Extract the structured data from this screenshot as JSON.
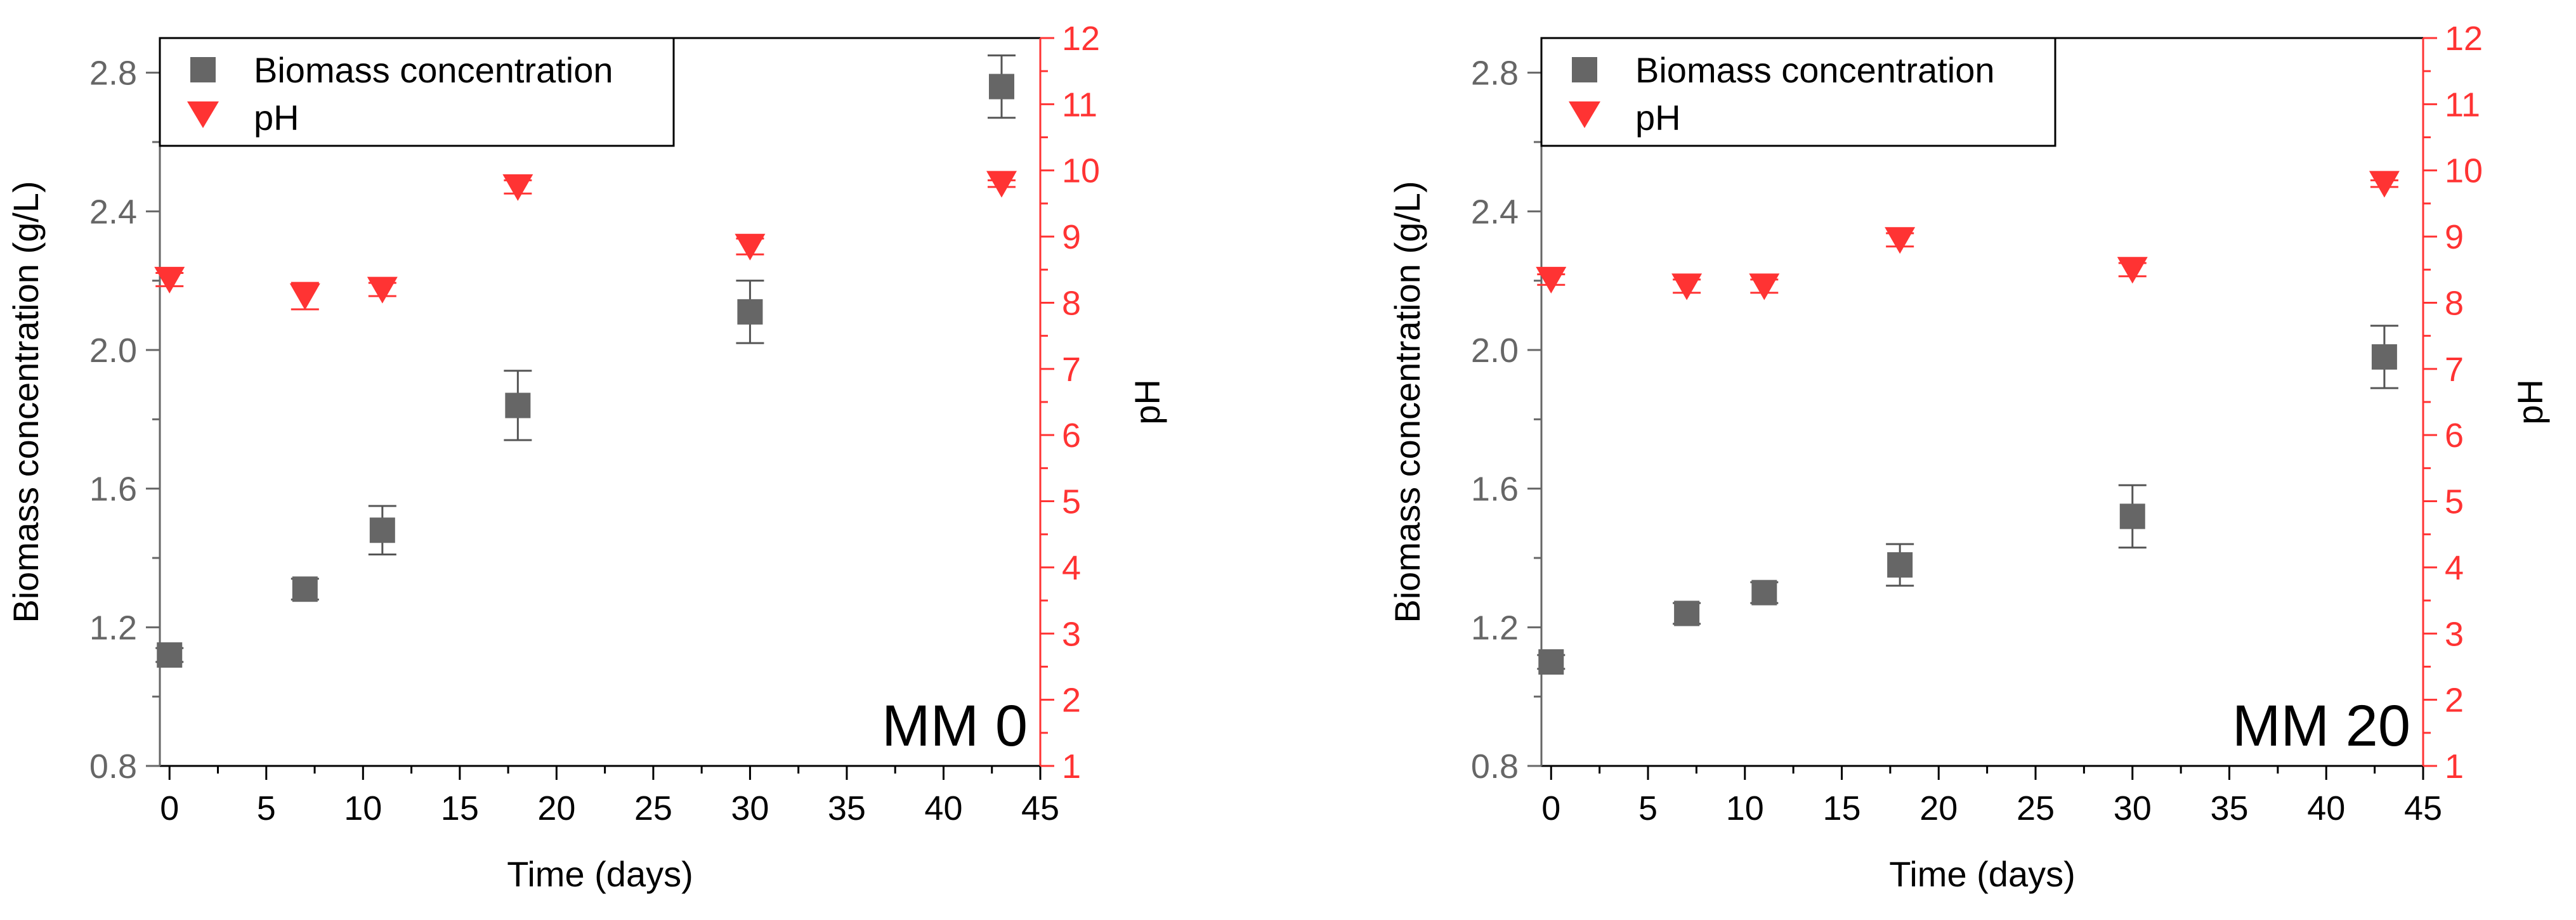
{
  "colors": {
    "biomass": "#666666",
    "ph": "#ff3333",
    "ph_axis": "#ff3333",
    "left_axis": "#666666",
    "frame": "#000000"
  },
  "chart_data": [
    {
      "type": "scatter",
      "panel_label": "MM 0",
      "xlabel": "Time (days)",
      "ylabel": "Biomass concentration (g/L)",
      "y2label": "pH",
      "xlim": [
        -0.5,
        45
      ],
      "ylim": [
        0.8,
        2.9
      ],
      "y2lim": [
        1,
        12
      ],
      "x_ticks": [
        0,
        5,
        10,
        15,
        20,
        25,
        30,
        35,
        40,
        45
      ],
      "y_ticks": [
        0.8,
        1.2,
        1.6,
        2.0,
        2.4,
        2.8
      ],
      "y_tick_labels": [
        "0.8",
        "1.2",
        "1.6",
        "2.0",
        "2.4",
        "2.8"
      ],
      "y2_ticks": [
        1,
        2,
        3,
        4,
        5,
        6,
        7,
        8,
        9,
        10,
        11,
        12
      ],
      "legend": [
        "Biomass concentration",
        "pH"
      ],
      "series": [
        {
          "name": "Biomass concentration",
          "marker": "square",
          "axis": "left",
          "x": [
            0,
            7,
            11,
            18,
            30,
            43
          ],
          "y": [
            1.12,
            1.31,
            1.48,
            1.84,
            2.11,
            2.76
          ],
          "err": [
            0.02,
            0.03,
            0.07,
            0.1,
            0.09,
            0.09
          ]
        },
        {
          "name": "pH",
          "marker": "triangle-down",
          "axis": "right",
          "x": [
            0,
            7,
            11,
            18,
            30,
            43
          ],
          "y": [
            8.35,
            8.1,
            8.2,
            9.75,
            8.85,
            9.8
          ],
          "err": [
            0.1,
            0.2,
            0.1,
            0.1,
            0.12,
            0.05
          ]
        }
      ]
    },
    {
      "type": "scatter",
      "panel_label": "MM 20",
      "xlabel": "Time (days)",
      "ylabel": "Biomass concentration (g/L)",
      "y2label": "pH",
      "xlim": [
        -0.5,
        45
      ],
      "ylim": [
        0.8,
        2.9
      ],
      "y2lim": [
        1,
        12
      ],
      "x_ticks": [
        0,
        5,
        10,
        15,
        20,
        25,
        30,
        35,
        40,
        45
      ],
      "y_ticks": [
        0.8,
        1.2,
        1.6,
        2.0,
        2.4,
        2.8
      ],
      "y_tick_labels": [
        "0.8",
        "1.2",
        "1.6",
        "2.0",
        "2.4",
        "2.8"
      ],
      "y2_ticks": [
        1,
        2,
        3,
        4,
        5,
        6,
        7,
        8,
        9,
        10,
        11,
        12
      ],
      "legend": [
        "Biomass concentration",
        "pH"
      ],
      "series": [
        {
          "name": "Biomass concentration",
          "marker": "square",
          "axis": "left",
          "x": [
            0,
            7,
            11,
            18,
            30,
            43
          ],
          "y": [
            1.1,
            1.24,
            1.3,
            1.38,
            1.52,
            1.98
          ],
          "err": [
            0.02,
            0.03,
            0.03,
            0.06,
            0.09,
            0.09
          ]
        },
        {
          "name": "pH",
          "marker": "triangle-down",
          "axis": "right",
          "x": [
            0,
            7,
            11,
            18,
            30,
            43
          ],
          "y": [
            8.35,
            8.25,
            8.25,
            8.95,
            8.5,
            9.8
          ],
          "err": [
            0.08,
            0.1,
            0.1,
            0.1,
            0.1,
            0.05
          ]
        }
      ]
    }
  ]
}
